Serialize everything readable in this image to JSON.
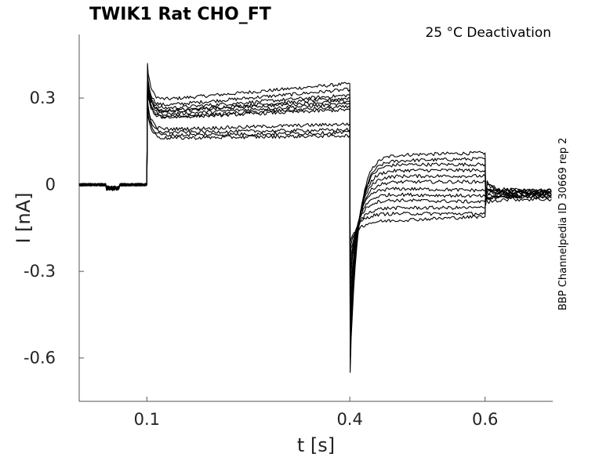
{
  "chart_data": {
    "type": "line",
    "title": "TWIK1  Rat  CHO_FT",
    "subtitle": "25 °C  Deactivation",
    "side_note": "BBP Channelpedia ID 30669 rep 2",
    "xlabel": "t [s]",
    "ylabel": "I [nA]",
    "xlim": [
      0.0,
      0.7
    ],
    "ylim": [
      -0.75,
      0.52
    ],
    "x_ticks": [
      0.1,
      0.4,
      0.6
    ],
    "x_tick_labels": [
      "0.1",
      "0.4",
      "0.6"
    ],
    "y_ticks": [
      0.3,
      0,
      -0.3,
      -0.6
    ],
    "y_tick_labels": [
      "0.3",
      "0",
      "-0.3",
      "-0.6"
    ],
    "grid": false,
    "line_color": "#000000",
    "series": [
      {
        "values": {
          "hold": 0.0,
          "peak": 0.42,
          "step_start": 0.29,
          "step_end": 0.35,
          "tail_start": 0.1,
          "tail_end": 0.11,
          "tail_min": -0.65,
          "final": -0.02
        }
      },
      {
        "values": {
          "hold": 0.0,
          "peak": 0.39,
          "step_start": 0.27,
          "step_end": 0.33,
          "tail_start": 0.08,
          "tail_end": 0.09,
          "tail_min": -0.6,
          "final": -0.02
        }
      },
      {
        "values": {
          "hold": 0.0,
          "peak": 0.38,
          "step_start": 0.26,
          "step_end": 0.31,
          "tail_start": 0.07,
          "tail_end": 0.07,
          "tail_min": -0.55,
          "final": -0.02
        }
      },
      {
        "values": {
          "hold": 0.0,
          "peak": 0.37,
          "step_start": 0.25,
          "step_end": 0.3,
          "tail_start": 0.05,
          "tail_end": 0.05,
          "tail_min": -0.5,
          "final": -0.03
        }
      },
      {
        "values": {
          "hold": 0.0,
          "peak": 0.36,
          "step_start": 0.25,
          "step_end": 0.29,
          "tail_start": 0.03,
          "tail_end": 0.03,
          "tail_min": -0.45,
          "final": -0.03
        }
      },
      {
        "values": {
          "hold": 0.0,
          "peak": 0.35,
          "step_start": 0.24,
          "step_end": 0.28,
          "tail_start": 0.01,
          "tail_end": 0.01,
          "tail_min": -0.4,
          "final": -0.03
        }
      },
      {
        "values": {
          "hold": 0.0,
          "peak": 0.34,
          "step_start": 0.23,
          "step_end": 0.27,
          "tail_start": -0.01,
          "tail_end": -0.02,
          "tail_min": -0.35,
          "final": -0.03
        }
      },
      {
        "values": {
          "hold": 0.0,
          "peak": 0.33,
          "step_start": 0.23,
          "step_end": 0.26,
          "tail_start": -0.03,
          "tail_end": -0.04,
          "tail_min": -0.32,
          "final": -0.04
        }
      },
      {
        "values": {
          "hold": 0.0,
          "peak": 0.3,
          "step_start": 0.19,
          "step_end": 0.21,
          "tail_start": -0.05,
          "tail_end": -0.06,
          "tail_min": -0.28,
          "final": -0.04
        }
      },
      {
        "values": {
          "hold": 0.0,
          "peak": 0.28,
          "step_start": 0.18,
          "step_end": 0.19,
          "tail_start": -0.08,
          "tail_end": -0.08,
          "tail_min": -0.25,
          "final": -0.04
        }
      },
      {
        "values": {
          "hold": 0.0,
          "peak": 0.27,
          "step_start": 0.17,
          "step_end": 0.18,
          "tail_start": -0.1,
          "tail_end": -0.1,
          "tail_min": -0.22,
          "final": -0.04
        }
      },
      {
        "values": {
          "hold": 0.0,
          "peak": 0.26,
          "step_start": 0.16,
          "step_end": 0.17,
          "tail_start": -0.13,
          "tail_end": -0.11,
          "tail_min": -0.2,
          "final": -0.05
        }
      }
    ],
    "segments_s": {
      "pulse_on": 0.1,
      "pulse_off": 0.4,
      "tail_end": 0.6,
      "record_end": 0.7
    }
  }
}
